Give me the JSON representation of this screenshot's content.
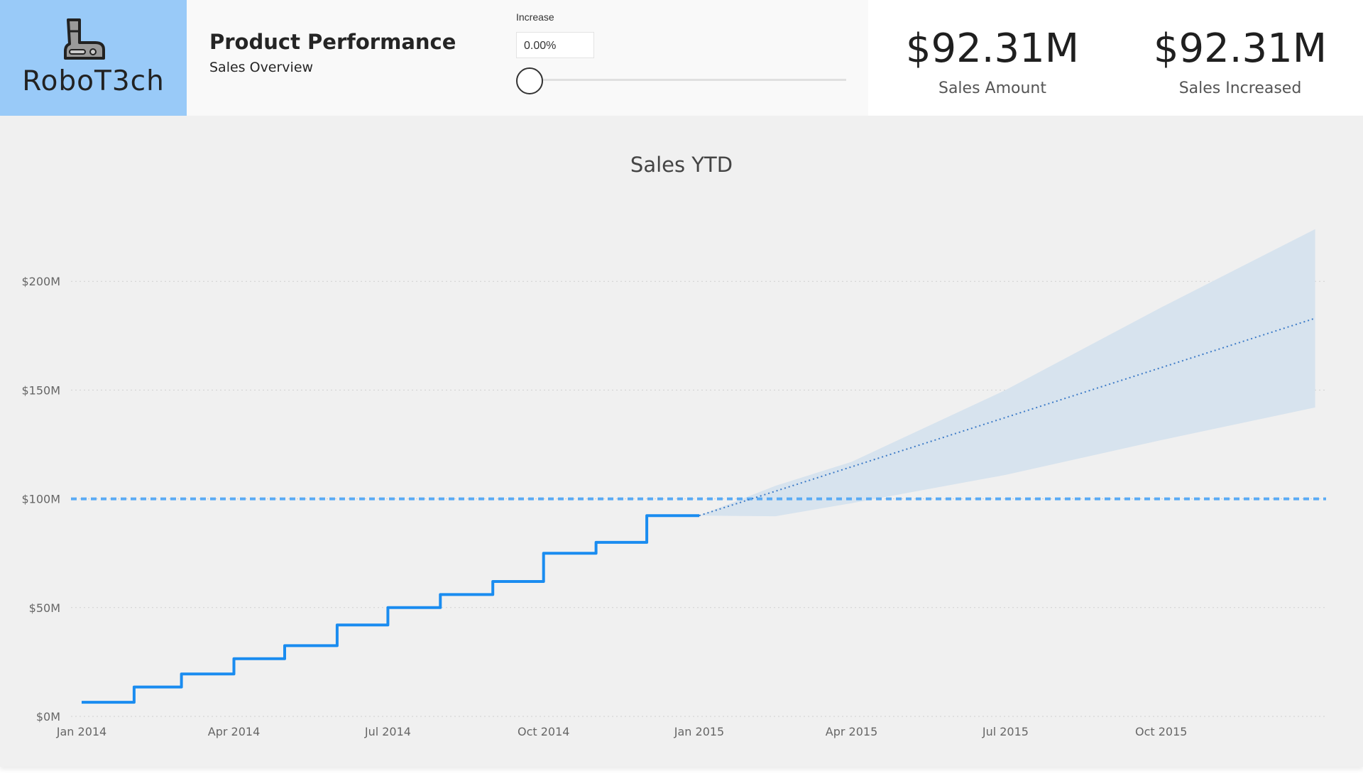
{
  "logo": {
    "text": "RoboT3ch",
    "icon": "robot-arm-icon"
  },
  "header": {
    "title": "Product Performance",
    "subtitle": "Sales Overview"
  },
  "slicer": {
    "label": "Increase",
    "value": "0.00%",
    "level": 0
  },
  "kpis": [
    {
      "value": "$92.31M",
      "label": "Sales Amount"
    },
    {
      "value": "$92.31M",
      "label": "Sales Increased"
    }
  ],
  "colors": {
    "accent": "#1a8cf0",
    "logo_bg": "#99caf8",
    "forecast_band": "#d7e3ee",
    "target_line": "#5aabf5",
    "forecast_line": "#3d7bc7"
  },
  "chart_data": {
    "type": "line",
    "title": "Sales YTD",
    "xlabel": "",
    "ylabel": "",
    "x_ticks": [
      "Jan 2014",
      "Apr 2014",
      "Jul 2014",
      "Oct 2014",
      "Jan 2015",
      "Apr 2015",
      "Jul 2015",
      "Oct 2015"
    ],
    "y_ticks": [
      "$0M",
      "$50M",
      "$100M",
      "$150M",
      "$200M"
    ],
    "ylim": [
      0,
      230
    ],
    "grid": true,
    "series": [
      {
        "type": "step",
        "x": [
          "2014-01-01",
          "2014-02-01",
          "2014-03-01",
          "2014-04-01",
          "2014-05-01",
          "2014-06-01",
          "2014-07-01",
          "2014-08-01",
          "2014-09-01",
          "2014-10-01",
          "2014-11-01",
          "2014-12-01",
          "2015-01-01"
        ],
        "values": [
          6.5,
          13.5,
          19.5,
          26.5,
          32.5,
          42,
          50,
          56,
          62,
          75,
          80,
          92.3,
          92.3
        ]
      },
      {
        "type": "forecast",
        "x": [
          "2015-01-01",
          "2015-12-31"
        ],
        "values": [
          92.3,
          183
        ]
      }
    ],
    "forecast_band": {
      "x": [
        "2015-01-01",
        "2015-02-15",
        "2015-04-01",
        "2015-07-01",
        "2015-10-01",
        "2015-12-31"
      ],
      "upper": [
        92.3,
        106,
        117,
        150,
        188,
        224
      ],
      "lower": [
        92.3,
        92,
        98,
        111,
        127,
        142
      ]
    },
    "reference_line": {
      "value": 100
    }
  }
}
